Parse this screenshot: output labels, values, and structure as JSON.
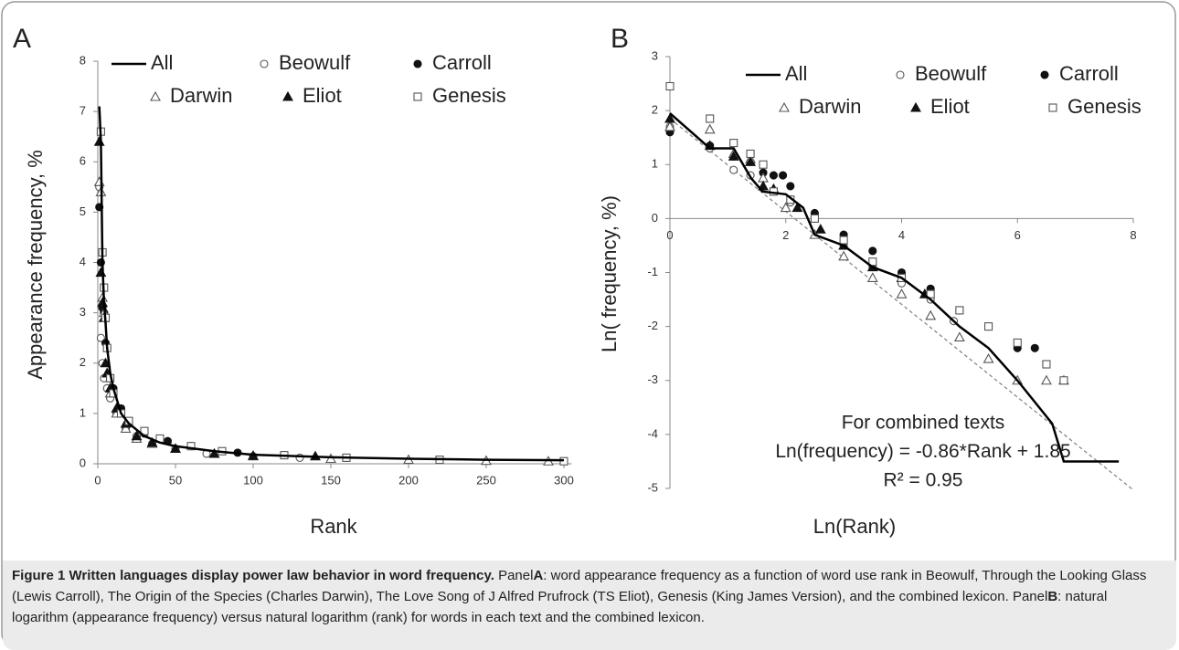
{
  "chart_data": [
    {
      "type": "scatter",
      "panel": "A",
      "xlabel": "Rank",
      "ylabel": "Appearance frequency, %",
      "xlim": [
        0,
        305
      ],
      "xticks": [
        0,
        50,
        100,
        150,
        200,
        250,
        300
      ],
      "ylim": [
        0,
        8
      ],
      "yticks": [
        0,
        1,
        2,
        3,
        4,
        5,
        6,
        7,
        8
      ],
      "series": [
        {
          "name": "All",
          "marker": "line",
          "color": "#000000",
          "x": [
            1,
            2,
            3,
            4,
            5,
            6,
            8,
            10,
            15,
            20,
            30,
            40,
            50,
            75,
            100,
            150,
            200,
            250,
            300
          ],
          "values": [
            7.1,
            6.4,
            4.0,
            3.2,
            2.8,
            2.3,
            1.8,
            1.5,
            1.0,
            0.8,
            0.55,
            0.42,
            0.35,
            0.25,
            0.18,
            0.13,
            0.1,
            0.08,
            0.07
          ]
        },
        {
          "name": "Beowulf",
          "marker": "circle",
          "color": "#555555",
          "x": [
            1,
            2,
            3,
            4,
            6,
            8,
            12,
            18,
            25,
            35,
            50,
            70,
            100,
            130
          ],
          "values": [
            5.5,
            2.5,
            2.0,
            1.7,
            1.5,
            1.3,
            1.0,
            0.7,
            0.55,
            0.4,
            0.3,
            0.2,
            0.15,
            0.12
          ]
        },
        {
          "name": "Carroll",
          "marker": "circle-filled",
          "color": "#111111",
          "x": [
            1,
            2,
            3,
            4,
            5,
            6,
            8,
            10,
            15,
            20,
            30,
            45,
            60,
            90,
            120,
            160
          ],
          "values": [
            5.1,
            4.0,
            3.1,
            3.0,
            2.4,
            2.3,
            1.7,
            1.5,
            1.1,
            0.8,
            0.6,
            0.45,
            0.35,
            0.22,
            0.17,
            0.12
          ]
        },
        {
          "name": "Darwin",
          "marker": "triangle",
          "color": "#555555",
          "x": [
            1,
            2,
            3,
            4,
            6,
            8,
            12,
            18,
            25,
            35,
            50,
            75,
            100,
            150,
            200,
            250,
            290
          ],
          "values": [
            5.6,
            5.4,
            3.3,
            3.0,
            1.8,
            1.4,
            1.0,
            0.7,
            0.5,
            0.4,
            0.3,
            0.2,
            0.15,
            0.1,
            0.08,
            0.06,
            0.05
          ]
        },
        {
          "name": "Eliot",
          "marker": "triangle-filled",
          "color": "#111111",
          "x": [
            1,
            2,
            3,
            4,
            5,
            6,
            8,
            12,
            18,
            25,
            35,
            50,
            75,
            100,
            140
          ],
          "values": [
            6.4,
            3.8,
            3.2,
            2.9,
            2.0,
            1.8,
            1.5,
            1.1,
            0.8,
            0.55,
            0.42,
            0.3,
            0.2,
            0.16,
            0.15
          ]
        },
        {
          "name": "Genesis",
          "marker": "square",
          "color": "#555555",
          "x": [
            2,
            3,
            4,
            5,
            6,
            8,
            10,
            15,
            20,
            30,
            40,
            60,
            80,
            120,
            160,
            220,
            300
          ],
          "values": [
            6.6,
            4.2,
            3.5,
            2.9,
            2.3,
            1.7,
            1.4,
            1.0,
            0.85,
            0.65,
            0.5,
            0.35,
            0.25,
            0.17,
            0.12,
            0.08,
            0.05
          ]
        }
      ]
    },
    {
      "type": "scatter",
      "panel": "B",
      "xlabel": "Ln(Rank)",
      "ylabel": "Ln( frequency,  %)",
      "xlim": [
        0,
        8
      ],
      "xticks": [
        0,
        2,
        4,
        6,
        8
      ],
      "ylim": [
        -5,
        3
      ],
      "yticks": [
        -5,
        -4,
        -3,
        -2,
        -1,
        0,
        1,
        2,
        3
      ],
      "trendline": {
        "slope": -0.86,
        "intercept": 1.85,
        "color": "#888888"
      },
      "annotations": [
        "For combined texts",
        "Ln(frequency) = -0.86*Rank + 1.85",
        "R² = 0.95"
      ],
      "series": [
        {
          "name": "All",
          "marker": "line",
          "color": "#000000",
          "x": [
            0,
            0.69,
            1.1,
            1.4,
            1.6,
            2.0,
            2.3,
            2.5,
            3.0,
            3.5,
            4.0,
            4.5,
            5.0,
            5.5,
            6.0,
            6.3,
            6.6,
            6.8,
            7.75
          ],
          "values": [
            1.95,
            1.3,
            1.3,
            0.75,
            0.5,
            0.45,
            0.2,
            -0.3,
            -0.5,
            -0.9,
            -1.1,
            -1.5,
            -2.0,
            -2.4,
            -3.0,
            -3.4,
            -3.8,
            -4.5,
            -4.5
          ]
        },
        {
          "name": "Beowulf",
          "marker": "circle",
          "color": "#555555",
          "x": [
            0,
            0.69,
            1.1,
            1.39,
            1.79,
            2.08,
            2.5,
            3.0,
            3.5,
            4.0,
            4.5,
            4.9
          ],
          "values": [
            1.7,
            1.3,
            0.9,
            0.8,
            0.5,
            0.3,
            0.0,
            -0.5,
            -0.9,
            -1.2,
            -1.5,
            -1.9
          ]
        },
        {
          "name": "Carroll",
          "marker": "circle-filled",
          "color": "#111111",
          "x": [
            0,
            0.69,
            1.1,
            1.39,
            1.61,
            1.79,
            1.95,
            2.08,
            2.5,
            3.0,
            3.5,
            4.0,
            4.5,
            5.0,
            5.5,
            6.0,
            6.3
          ],
          "values": [
            1.6,
            1.35,
            1.15,
            1.05,
            0.85,
            0.8,
            0.8,
            0.6,
            0.1,
            -0.3,
            -0.6,
            -1.0,
            -1.3,
            -1.7,
            -2.0,
            -2.4,
            -2.4
          ]
        },
        {
          "name": "Darwin",
          "marker": "triangle",
          "color": "#555555",
          "x": [
            0,
            0.69,
            1.1,
            1.39,
            1.61,
            2.0,
            2.5,
            3.0,
            3.5,
            4.0,
            4.5,
            5.0,
            5.5,
            6.0,
            6.5,
            6.8
          ],
          "values": [
            1.7,
            1.65,
            1.2,
            1.1,
            0.75,
            0.2,
            -0.3,
            -0.7,
            -1.1,
            -1.4,
            -1.8,
            -2.2,
            -2.6,
            -3.0,
            -3.0,
            -3.0
          ]
        },
        {
          "name": "Eliot",
          "marker": "triangle-filled",
          "color": "#111111",
          "x": [
            0,
            0.69,
            1.1,
            1.39,
            1.61,
            1.79,
            2.2,
            2.6,
            3.0,
            3.5,
            4.0,
            4.4
          ],
          "values": [
            1.85,
            1.35,
            1.15,
            1.05,
            0.6,
            0.55,
            0.2,
            -0.2,
            -0.5,
            -0.9,
            -1.1,
            -1.4
          ]
        },
        {
          "name": "Genesis",
          "marker": "square",
          "color": "#555555",
          "x": [
            0,
            0.69,
            1.1,
            1.39,
            1.61,
            1.79,
            2.08,
            2.5,
            3.0,
            3.5,
            4.0,
            4.5,
            5.0,
            5.5,
            6.0,
            6.5,
            6.8
          ],
          "values": [
            2.45,
            1.85,
            1.4,
            1.2,
            1.0,
            0.5,
            0.35,
            0.0,
            -0.4,
            -0.8,
            -1.1,
            -1.4,
            -1.7,
            -2.0,
            -2.3,
            -2.7,
            -3.0
          ]
        }
      ]
    }
  ],
  "caption": {
    "title": "Figure 1 Written languages display power law behavior in word frequency.",
    "panel_word": "Panel",
    "panels": [
      {
        "label": "A",
        "text": ": word appearance frequency as a function of word use rank in Beowulf, Through the Looking Glass (Lewis Carroll), The Origin of the Species (Charles Darwin), The Love Song of J Alfred Prufrock (TS Eliot), Genesis (King James Version), and the combined lexicon."
      },
      {
        "label": "B",
        "text": ": natural logarithm (appearance frequency) versus natural logarithm (rank) for words in each text and the combined lexicon."
      }
    ]
  }
}
